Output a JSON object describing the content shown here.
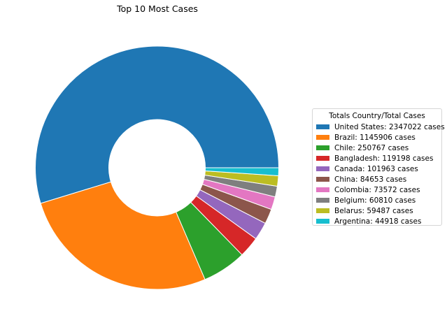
{
  "chart_data": {
    "type": "pie",
    "donut": true,
    "title": "Top 10 Most Cases",
    "legend": {
      "title": "Totals Country/Total Cases",
      "placement": "right"
    },
    "slices": [
      {
        "name": "United States",
        "value": 2347022,
        "color": "#1f77b4",
        "legend_label": "United States: 2347022 cases"
      },
      {
        "name": "Brazil",
        "value": 1145906,
        "color": "#ff7f0e",
        "legend_label": "Brazil: 1145906 cases"
      },
      {
        "name": "Chile",
        "value": 250767,
        "color": "#2ca02c",
        "legend_label": "Chile: 250767 cases"
      },
      {
        "name": "Bangladesh",
        "value": 119198,
        "color": "#d62728",
        "legend_label": "Bangladesh: 119198 cases"
      },
      {
        "name": "Canada",
        "value": 101963,
        "color": "#9467bd",
        "legend_label": "Canada: 101963 cases"
      },
      {
        "name": "China",
        "value": 84653,
        "color": "#8c564b",
        "legend_label": "China: 84653 cases"
      },
      {
        "name": "Colombia",
        "value": 73572,
        "color": "#e377c2",
        "legend_label": "Colombia: 73572 cases"
      },
      {
        "name": "Belgium",
        "value": 60810,
        "color": "#7f7f7f",
        "legend_label": "Belgium: 60810 cases"
      },
      {
        "name": "Belarus",
        "value": 59487,
        "color": "#bcbd22",
        "legend_label": "Belarus: 59487 cases"
      },
      {
        "name": "Argentina",
        "value": 44918,
        "color": "#17becf",
        "legend_label": "Argentina: 44918 cases"
      }
    ]
  }
}
